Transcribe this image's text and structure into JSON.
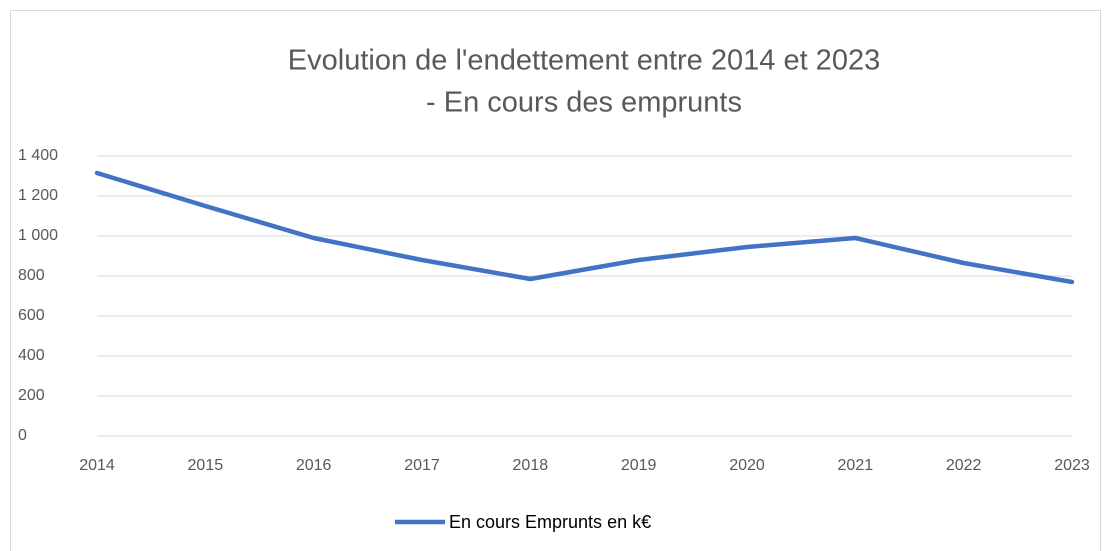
{
  "chart_data": {
    "type": "line",
    "title": [
      "Evolution de l'endettement entre 2014 et 2023",
      "- En cours des emprunts"
    ],
    "x": [
      2014,
      2015,
      2016,
      2017,
      2018,
      2019,
      2020,
      2021,
      2022,
      2023
    ],
    "series": [
      {
        "name": "En cours Emprunts en k€",
        "color": "#4472c4",
        "values": [
          1315,
          1150,
          990,
          880,
          785,
          880,
          945,
          990,
          865,
          770
        ]
      }
    ],
    "xlim": [
      2014,
      2023
    ],
    "xticks": [
      2014,
      2015,
      2016,
      2017,
      2018,
      2019,
      2020,
      2021,
      2022,
      2023
    ],
    "ylim": [
      0,
      1400
    ],
    "yticks": [
      0,
      200,
      400,
      600,
      800,
      {
        "value": 1000,
        "label": "1 000"
      },
      {
        "value": 1200,
        "label": "1 200"
      },
      {
        "value": 1400,
        "label": "1 400"
      }
    ],
    "grid": true,
    "legend": "bottom"
  }
}
